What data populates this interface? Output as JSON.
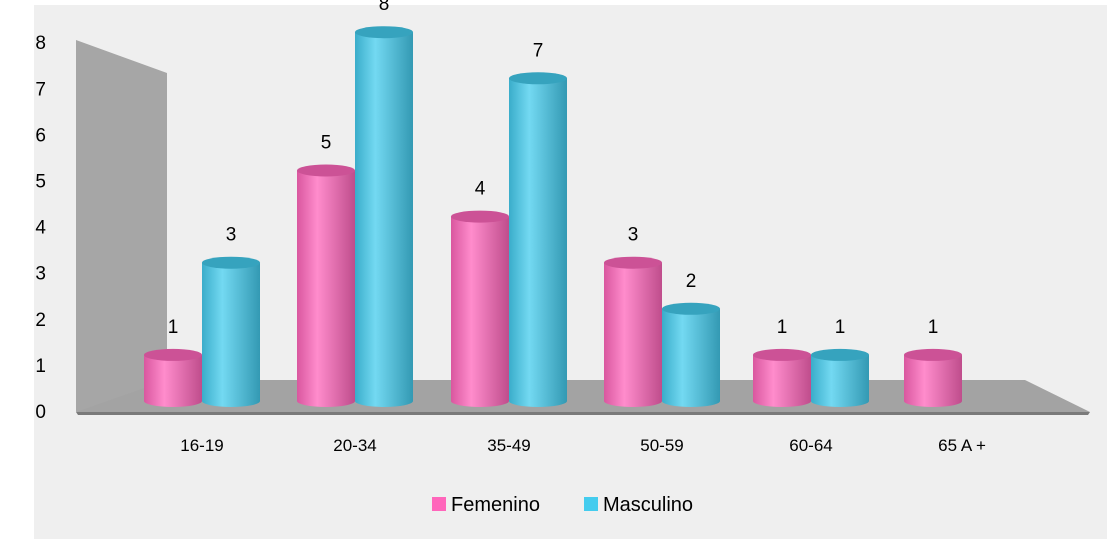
{
  "chart_data": {
    "type": "bar",
    "title": "",
    "xlabel": "",
    "ylabel": "",
    "categories": [
      "16-19",
      "20-34",
      "35-49",
      "50-59",
      "60-64",
      "65 A +"
    ],
    "series": [
      {
        "name": "Femenino",
        "values": [
          1,
          5,
          4,
          3,
          1,
          1
        ],
        "color": "#ff66bb"
      },
      {
        "name": "Masculino",
        "values": [
          3,
          8,
          7,
          2,
          1,
          null
        ],
        "color": "#44ccee"
      }
    ],
    "yticks": [
      "0",
      "1",
      "2",
      "3",
      "4",
      "5",
      "6",
      "7",
      "8"
    ],
    "ylim": [
      0,
      8
    ],
    "legend_position": "bottom",
    "grid": false,
    "style": "3d-cylinder"
  }
}
